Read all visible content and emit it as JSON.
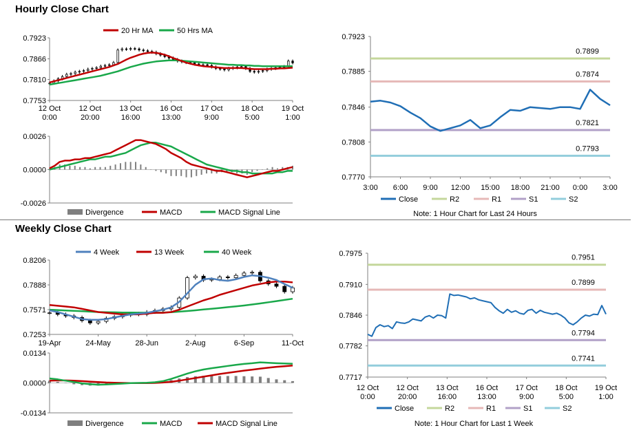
{
  "titles": {
    "hourly": "Hourly Close Chart",
    "weekly": "Weekly Close Chart"
  },
  "colors": {
    "close": "#1f6eb5",
    "ma20": "#c00000",
    "ma50": "#19a84a",
    "r2": "#c4d79b",
    "r1": "#e6b8b7",
    "s1": "#b1a0c7",
    "s2": "#92cddc",
    "divergence": "#7f7f7f",
    "candle": "#000000"
  },
  "chart_data": [
    {
      "id": "hourly_price",
      "type": "candlestick",
      "legend": [
        "20 Hr MA",
        "50 Hrs MA"
      ],
      "ylim": [
        0.7753,
        0.7923
      ],
      "yticks": [
        "0.7923",
        "0.7866",
        "0.7810",
        "0.7753"
      ],
      "xticks": [
        [
          "12 Oct",
          "0:00"
        ],
        [
          "12 Oct",
          "20:00"
        ],
        [
          "13 Oct",
          "16:00"
        ],
        [
          "16 Oct",
          "13:00"
        ],
        [
          "17 Oct",
          "9:00"
        ],
        [
          "18 Oct",
          "5:00"
        ],
        [
          "19 Oct",
          "1:00"
        ]
      ],
      "close": [
        0.78,
        0.7806,
        0.7812,
        0.7818,
        0.7824,
        0.7826,
        0.783,
        0.7832,
        0.7834,
        0.7838,
        0.784,
        0.7842,
        0.7846,
        0.7848,
        0.785,
        0.7856,
        0.789,
        0.7893,
        0.7892,
        0.7894,
        0.7893,
        0.789,
        0.7888,
        0.7886,
        0.7884,
        0.788,
        0.7876,
        0.7872,
        0.7868,
        0.7864,
        0.786,
        0.7858,
        0.7856,
        0.7855,
        0.7852,
        0.785,
        0.785,
        0.7848,
        0.7844,
        0.784,
        0.7838,
        0.7836,
        0.784,
        0.7842,
        0.7844,
        0.7845,
        0.784,
        0.7832,
        0.783,
        0.7832,
        0.7834,
        0.7838,
        0.784,
        0.7842,
        0.7843,
        0.7845,
        0.786,
        0.7855
      ],
      "ma20": [
        0.7802,
        0.7805,
        0.7808,
        0.7811,
        0.7814,
        0.7817,
        0.782,
        0.7823,
        0.7826,
        0.7829,
        0.7832,
        0.7835,
        0.7838,
        0.7841,
        0.7844,
        0.7848,
        0.7852,
        0.7858,
        0.7864,
        0.7869,
        0.7873,
        0.7877,
        0.788,
        0.7882,
        0.7883,
        0.7882,
        0.788,
        0.7877,
        0.7873,
        0.7868,
        0.7864,
        0.786,
        0.7856,
        0.7853,
        0.785,
        0.7848,
        0.7846,
        0.7845,
        0.7844,
        0.7843,
        0.7842,
        0.7841,
        0.7841,
        0.7841,
        0.7841,
        0.7841,
        0.784,
        0.7839,
        0.7838,
        0.7838,
        0.7838,
        0.7838,
        0.7839,
        0.7839,
        0.784,
        0.784,
        0.7841,
        0.7842
      ],
      "ma50": [
        0.7796,
        0.7798,
        0.78,
        0.7802,
        0.7804,
        0.7806,
        0.7808,
        0.781,
        0.7812,
        0.7814,
        0.7816,
        0.7818,
        0.782,
        0.7823,
        0.7826,
        0.7829,
        0.7832,
        0.7836,
        0.784,
        0.7844,
        0.7847,
        0.785,
        0.7853,
        0.7855,
        0.7857,
        0.7859,
        0.786,
        0.7861,
        0.7862,
        0.7862,
        0.7862,
        0.7861,
        0.786,
        0.7859,
        0.7858,
        0.7857,
        0.7856,
        0.7855,
        0.7854,
        0.7853,
        0.7852,
        0.7851,
        0.785,
        0.785,
        0.7849,
        0.7849,
        0.7848,
        0.7848,
        0.7847,
        0.7847,
        0.7846,
        0.7846,
        0.7846,
        0.7846,
        0.7846,
        0.7846,
        0.7846,
        0.7846
      ]
    },
    {
      "id": "hourly_macd",
      "type": "line+bar",
      "legend": [
        "Divergence",
        "MACD",
        "MACD Signal Line"
      ],
      "ylim": [
        -0.0026,
        0.0026
      ],
      "yticks": [
        "0.0026",
        "0.0000",
        "-0.0026"
      ],
      "macd": [
        0.0001,
        0.0003,
        0.0006,
        0.0007,
        0.0007,
        0.0008,
        0.0008,
        0.0009,
        0.0009,
        0.001,
        0.0011,
        0.0012,
        0.0013,
        0.0015,
        0.0017,
        0.0019,
        0.0021,
        0.0023,
        0.0023,
        0.0022,
        0.0021,
        0.002,
        0.0018,
        0.0016,
        0.0013,
        0.0011,
        0.0009,
        0.0006,
        0.0004,
        0.0003,
        0.0002,
        0.0001,
        0.0,
        -0.0001,
        -0.0001,
        -0.0002,
        -0.0003,
        -0.0004,
        -0.0005,
        -0.0006,
        -0.0005,
        -0.0004,
        -0.0003,
        -0.0002,
        -0.0001,
        -0.0001,
        0.0,
        0.0001,
        0.0002
      ],
      "signal": [
        0.0,
        0.0001,
        0.0002,
        0.0003,
        0.0004,
        0.0005,
        0.0006,
        0.0007,
        0.0008,
        0.0008,
        0.0009,
        0.001,
        0.001,
        0.0011,
        0.0012,
        0.0013,
        0.0015,
        0.0017,
        0.0019,
        0.002,
        0.0021,
        0.0021,
        0.002,
        0.0019,
        0.0018,
        0.0016,
        0.0014,
        0.0012,
        0.001,
        0.0008,
        0.0006,
        0.0004,
        0.0003,
        0.0002,
        0.0001,
        0.0,
        -0.0001,
        -0.0001,
        -0.0002,
        -0.0002,
        -0.0003,
        -0.0003,
        -0.0003,
        -0.0003,
        -0.0003,
        -0.0002,
        -0.0002,
        -0.0001,
        -0.0001
      ]
    },
    {
      "id": "hourly_close",
      "type": "line",
      "legend": [
        "Close",
        "R2",
        "R1",
        "S1",
        "S2"
      ],
      "ylim": [
        0.777,
        0.7923
      ],
      "yticks": [
        "0.7923",
        "0.7885",
        "0.7846",
        "0.7808",
        "0.7770"
      ],
      "xticks": [
        "3:00",
        "6:00",
        "9:00",
        "12:00",
        "15:00",
        "18:00",
        "21:00",
        "0:00",
        "3:00"
      ],
      "x": [
        0,
        1,
        2,
        3,
        4,
        5,
        6,
        7,
        8,
        9,
        10,
        11,
        12,
        13,
        14,
        15,
        16,
        17,
        18,
        19,
        20,
        21,
        22,
        23,
        24
      ],
      "close": [
        0.7852,
        0.7853,
        0.7851,
        0.7847,
        0.784,
        0.7834,
        0.7825,
        0.782,
        0.7823,
        0.7826,
        0.7832,
        0.7823,
        0.7826,
        0.7835,
        0.7843,
        0.7842,
        0.7846,
        0.7845,
        0.7844,
        0.7846,
        0.7846,
        0.7844,
        0.7865,
        0.7855,
        0.7848
      ],
      "levels": {
        "R2": 0.7899,
        "R1": 0.7874,
        "S1": 0.7821,
        "S2": 0.7793
      },
      "level_labels": {
        "R2": "0.7899",
        "R1": "0.7874",
        "S1": "0.7821",
        "S2": "0.7793"
      },
      "note": "Note: 1 Hour Chart for Last 24 Hours"
    },
    {
      "id": "weekly_price",
      "type": "candlestick",
      "legend": [
        "4 Week",
        "13 Week",
        "40 Week"
      ],
      "ylim": [
        0.7253,
        0.8206
      ],
      "yticks": [
        "0.8206",
        "0.7888",
        "0.7571",
        "0.7253"
      ],
      "xticks": [
        "19-Apr",
        "24-May",
        "28-Jun",
        "2-Aug",
        "6-Sep",
        "11-Oct"
      ],
      "close": [
        0.753,
        0.751,
        0.749,
        0.747,
        0.743,
        0.74,
        0.742,
        0.746,
        0.748,
        0.75,
        0.752,
        0.751,
        0.754,
        0.756,
        0.758,
        0.76,
        0.772,
        0.798,
        0.8,
        0.795,
        0.796,
        0.799,
        0.798,
        0.801,
        0.804,
        0.805,
        0.794,
        0.79,
        0.787,
        0.78,
        0.785
      ],
      "ma4": [
        0.756,
        0.754,
        0.751,
        0.748,
        0.745,
        0.744,
        0.744,
        0.745,
        0.747,
        0.749,
        0.751,
        0.752,
        0.753,
        0.755,
        0.757,
        0.76,
        0.767,
        0.778,
        0.789,
        0.796,
        0.797,
        0.795,
        0.794,
        0.796,
        0.799,
        0.801,
        0.8,
        0.798,
        0.795,
        0.79,
        0.785
      ],
      "ma13": [
        0.763,
        0.762,
        0.761,
        0.76,
        0.758,
        0.756,
        0.754,
        0.753,
        0.752,
        0.751,
        0.751,
        0.751,
        0.752,
        0.753,
        0.753,
        0.754,
        0.757,
        0.761,
        0.765,
        0.769,
        0.772,
        0.776,
        0.779,
        0.782,
        0.785,
        0.788,
        0.79,
        0.792,
        0.793,
        0.793,
        0.792
      ],
      "ma40": [
        0.757,
        0.7565,
        0.756,
        0.7555,
        0.755,
        0.7545,
        0.754,
        0.7538,
        0.7536,
        0.7534,
        0.7533,
        0.7532,
        0.7532,
        0.7532,
        0.7534,
        0.7538,
        0.7545,
        0.7553,
        0.7562,
        0.7572,
        0.7582,
        0.7592,
        0.7602,
        0.7612,
        0.7624,
        0.7637,
        0.765,
        0.7665,
        0.768,
        0.7695,
        0.771
      ]
    },
    {
      "id": "weekly_macd",
      "type": "line+bar",
      "legend": [
        "Divergence",
        "MACD",
        "MACD Signal Line"
      ],
      "ylim": [
        -0.0134,
        0.0134
      ],
      "yticks": [
        "0.0134",
        "0.0000",
        "-0.0134"
      ],
      "macd": [
        0.002,
        0.0016,
        0.001,
        0.0004,
        -0.0002,
        -0.0006,
        -0.0008,
        -0.0007,
        -0.0005,
        -0.0003,
        -0.0001,
        0.0,
        0.0001,
        0.0003,
        0.0008,
        0.0018,
        0.003,
        0.0042,
        0.0052,
        0.006,
        0.0066,
        0.0071,
        0.0076,
        0.0081,
        0.0085,
        0.0088,
        0.0092,
        0.009,
        0.0088,
        0.0087,
        0.0086
      ],
      "signal": [
        0.001,
        0.0011,
        0.0011,
        0.001,
        0.0008,
        0.0006,
        0.0004,
        0.0002,
        0.0001,
        0.0,
        -0.0001,
        -0.0001,
        -0.0001,
        0.0,
        0.0002,
        0.0005,
        0.001,
        0.0016,
        0.0022,
        0.0028,
        0.0034,
        0.004,
        0.0045,
        0.005,
        0.0055,
        0.0059,
        0.0064,
        0.0068,
        0.0072,
        0.0075,
        0.0078
      ]
    },
    {
      "id": "weekly_close",
      "type": "line",
      "legend": [
        "Close",
        "R2",
        "R1",
        "S1",
        "S2"
      ],
      "ylim": [
        0.7717,
        0.7975
      ],
      "yticks": [
        "0.7975",
        "0.7910",
        "0.7846",
        "0.7782",
        "0.7717"
      ],
      "xticks": [
        [
          "12 Oct",
          "0:00"
        ],
        [
          "12 Oct",
          "20:00"
        ],
        [
          "13 Oct",
          "16:00"
        ],
        [
          "16 Oct",
          "13:00"
        ],
        [
          "17 Oct",
          "9:00"
        ],
        [
          "18 Oct",
          "5:00"
        ],
        [
          "19 Oct",
          "1:00"
        ]
      ],
      "close": [
        0.7806,
        0.7802,
        0.782,
        0.7826,
        0.7822,
        0.7824,
        0.7818,
        0.7832,
        0.783,
        0.7829,
        0.7832,
        0.7838,
        0.7836,
        0.7834,
        0.7842,
        0.7845,
        0.784,
        0.7846,
        0.7845,
        0.784,
        0.789,
        0.7887,
        0.7888,
        0.7886,
        0.7884,
        0.788,
        0.7882,
        0.7878,
        0.7876,
        0.7874,
        0.7872,
        0.7862,
        0.7855,
        0.785,
        0.7858,
        0.7852,
        0.7855,
        0.785,
        0.7848,
        0.7856,
        0.7858,
        0.785,
        0.7856,
        0.7852,
        0.785,
        0.7848,
        0.785,
        0.7846,
        0.784,
        0.783,
        0.7826,
        0.7832,
        0.784,
        0.7846,
        0.7844,
        0.7848,
        0.7847,
        0.7866,
        0.7848
      ],
      "levels": {
        "R2": 0.7951,
        "R1": 0.7899,
        "S1": 0.7794,
        "S2": 0.7741
      },
      "level_labels": {
        "R2": "0.7951",
        "R1": "0.7899",
        "S1": "0.7794",
        "S2": "0.7741"
      },
      "note": "Note: 1 Hour Chart for Last 1 Week"
    }
  ]
}
